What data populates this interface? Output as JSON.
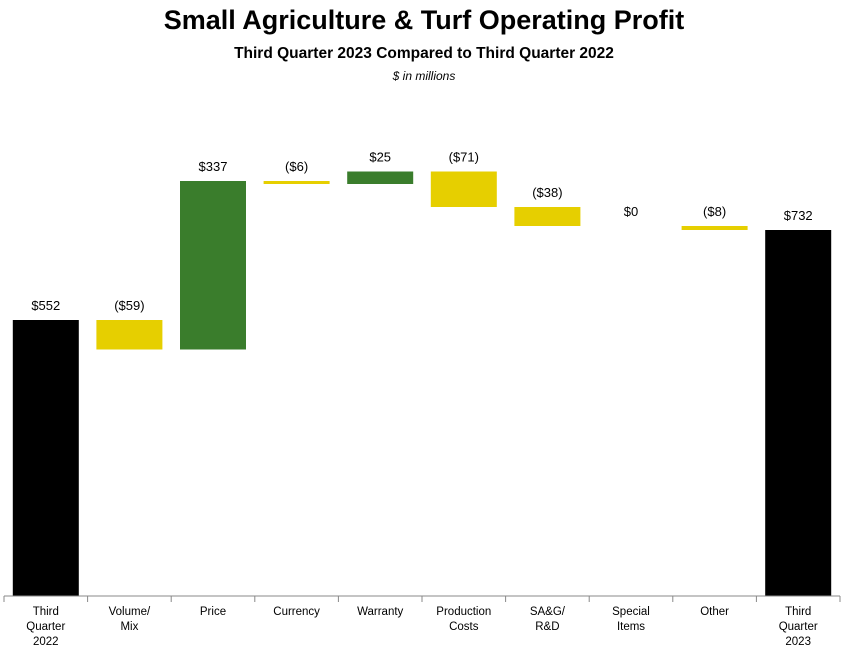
{
  "chart_data": {
    "type": "bar",
    "subtype": "waterfall",
    "title": "Small Agriculture & Turf Operating Profit",
    "subtitle": "Third Quarter 2023 Compared to Third Quarter 2022",
    "units": "$ in millions",
    "categories": [
      "Third Quarter 2022",
      "Volume/ Mix",
      "Price",
      "Currency",
      "Warranty",
      "Production Costs",
      "SA&G/ R&D",
      "Special Items",
      "Other",
      "Third Quarter 2023"
    ],
    "category_lines": [
      [
        "Third",
        "Quarter",
        "2022"
      ],
      [
        "Volume/",
        "Mix"
      ],
      [
        "Price"
      ],
      [
        "Currency"
      ],
      [
        "Warranty"
      ],
      [
        "Production",
        "Costs"
      ],
      [
        "SA&G/",
        "R&D"
      ],
      [
        "Special",
        "Items"
      ],
      [
        "Other"
      ],
      [
        "Third",
        "Quarter",
        "2023"
      ]
    ],
    "values": [
      552,
      -59,
      337,
      -6,
      25,
      -71,
      -38,
      0,
      -8,
      732
    ],
    "kinds": [
      "total",
      "delta",
      "delta",
      "delta",
      "delta",
      "delta",
      "delta",
      "delta",
      "delta",
      "total"
    ],
    "data_labels": [
      "$552",
      "($59)",
      "$337",
      "($6)",
      "$25",
      "($71)",
      "($38)",
      "$0",
      "($8)",
      "$732"
    ],
    "ylim": [
      0,
      800
    ],
    "grid": false,
    "colors": {
      "total": "#000000",
      "increase": "#3a7d2c",
      "decrease": "#e6cf00"
    }
  }
}
